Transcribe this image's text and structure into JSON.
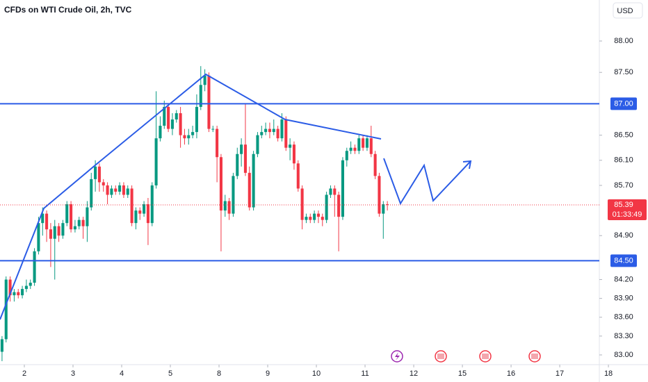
{
  "chart_data": {
    "type": "candlestick",
    "title": "CFDs on WTI Crude Oil, 2h, TVC",
    "currency": "USD",
    "up_color": "#089981",
    "down_color": "#f23645",
    "level_color": "#2b5ce6",
    "x": [
      0,
      1,
      2,
      3,
      4,
      5,
      6,
      7,
      8,
      9,
      10,
      11,
      12,
      13,
      14,
      15,
      16,
      17,
      18,
      19,
      20,
      21,
      22,
      23,
      24,
      25,
      26,
      27,
      28,
      29,
      30,
      31,
      32,
      33,
      34,
      35,
      36,
      37,
      38,
      39,
      40,
      41,
      42,
      43,
      44,
      45,
      46,
      47,
      48,
      49,
      50,
      51,
      52,
      53,
      54,
      55,
      56,
      57,
      58,
      59,
      60,
      61,
      62,
      63,
      64,
      65,
      66,
      67,
      68,
      69,
      70,
      71,
      72,
      73,
      74,
      75,
      76,
      77,
      78,
      79,
      80,
      81,
      82,
      83,
      84,
      85,
      86,
      87,
      88,
      89,
      90,
      91,
      92,
      93,
      94,
      95
    ],
    "open": [
      83.05,
      83.25,
      84.2,
      83.95,
      84.0,
      83.95,
      84.05,
      84.1,
      84.15,
      84.65,
      85.1,
      85.25,
      85.0,
      84.85,
      85.05,
      84.9,
      85.1,
      85.4,
      85.0,
      85.05,
      85.15,
      85.05,
      85.35,
      85.8,
      86.0,
      85.75,
      85.7,
      85.55,
      85.65,
      85.6,
      85.7,
      85.55,
      85.65,
      85.1,
      85.3,
      85.25,
      85.4,
      85.1,
      85.7,
      86.45,
      86.65,
      86.95,
      86.6,
      86.75,
      86.85,
      86.5,
      86.45,
      86.5,
      86.55,
      86.95,
      87.3,
      87.45,
      86.6,
      86.6,
      86.15,
      85.3,
      85.45,
      85.25,
      85.85,
      86.2,
      86.35,
      85.9,
      85.35,
      86.2,
      86.5,
      86.55,
      86.6,
      86.55,
      86.6,
      86.45,
      86.75,
      86.3,
      86.35,
      86.05,
      85.65,
      85.15,
      85.2,
      85.15,
      85.25,
      85.2,
      85.15,
      85.55,
      85.65,
      85.55,
      85.2,
      86.1,
      86.25,
      86.3,
      86.25,
      86.45,
      86.3,
      86.45,
      86.2,
      85.85,
      85.25,
      85.4
    ],
    "high": [
      83.3,
      84.25,
      84.25,
      84.05,
      84.05,
      84.1,
      84.2,
      84.2,
      84.7,
      85.2,
      85.35,
      85.3,
      85.1,
      85.15,
      85.1,
      85.15,
      85.45,
      85.45,
      85.15,
      85.2,
      85.2,
      85.45,
      85.9,
      86.1,
      86.05,
      85.8,
      85.75,
      85.7,
      85.7,
      85.75,
      85.75,
      85.7,
      85.7,
      85.35,
      85.35,
      85.45,
      85.5,
      85.75,
      87.2,
      86.8,
      87.05,
      87.0,
      86.85,
      86.9,
      86.95,
      86.6,
      86.6,
      86.65,
      87.15,
      87.6,
      87.55,
      87.5,
      86.65,
      86.65,
      86.2,
      85.55,
      85.5,
      85.9,
      86.3,
      86.45,
      87.0,
      86.0,
      86.25,
      86.55,
      86.65,
      86.7,
      86.7,
      86.75,
      86.65,
      86.85,
      86.8,
      86.45,
      86.4,
      86.1,
      85.7,
      85.25,
      85.25,
      85.3,
      85.3,
      85.25,
      85.6,
      85.7,
      85.7,
      85.6,
      86.15,
      86.3,
      86.4,
      86.35,
      86.5,
      86.5,
      86.5,
      86.65,
      86.25,
      85.9,
      85.45,
      85.45
    ],
    "low": [
      82.9,
      83.2,
      83.85,
      83.85,
      83.9,
      83.9,
      84.0,
      84.05,
      84.1,
      84.6,
      84.9,
      84.8,
      84.4,
      84.2,
      84.8,
      84.85,
      85.05,
      84.95,
      84.95,
      85.0,
      84.85,
      84.8,
      85.3,
      85.6,
      85.6,
      85.6,
      85.4,
      85.5,
      85.55,
      85.55,
      85.5,
      85.5,
      85.05,
      85.0,
      85.15,
      85.2,
      84.75,
      85.05,
      85.65,
      86.4,
      86.6,
      86.55,
      86.5,
      86.7,
      86.3,
      86.35,
      86.35,
      86.45,
      86.45,
      86.9,
      87.2,
      86.55,
      86.55,
      85.75,
      84.65,
      85.2,
      85.15,
      85.2,
      85.8,
      86.0,
      85.85,
      85.3,
      85.3,
      86.15,
      86.45,
      86.5,
      86.45,
      86.5,
      86.4,
      86.4,
      86.25,
      86.1,
      85.95,
      85.6,
      85.0,
      85.1,
      85.1,
      85.1,
      85.1,
      85.05,
      85.1,
      85.5,
      85.2,
      84.65,
      85.15,
      86.0,
      86.2,
      86.2,
      86.2,
      86.25,
      86.25,
      86.15,
      85.8,
      85.2,
      84.85,
      85.3
    ],
    "close": [
      83.25,
      84.2,
      83.95,
      84.0,
      83.95,
      84.05,
      84.1,
      84.15,
      84.65,
      85.1,
      85.25,
      85.0,
      84.85,
      85.05,
      84.9,
      85.1,
      85.4,
      85.0,
      85.05,
      85.15,
      85.05,
      85.35,
      85.8,
      86.0,
      85.75,
      85.7,
      85.55,
      85.65,
      85.6,
      85.7,
      85.55,
      85.65,
      85.1,
      85.3,
      85.25,
      85.4,
      85.1,
      85.7,
      86.45,
      86.65,
      86.95,
      86.6,
      86.75,
      86.85,
      86.5,
      86.45,
      86.5,
      86.55,
      86.95,
      87.3,
      87.45,
      86.6,
      86.6,
      86.15,
      85.3,
      85.45,
      85.25,
      85.85,
      86.2,
      86.35,
      85.9,
      85.35,
      86.2,
      86.5,
      86.55,
      86.6,
      86.55,
      86.6,
      86.45,
      86.75,
      86.3,
      86.35,
      86.05,
      85.65,
      85.15,
      85.2,
      85.15,
      85.25,
      85.2,
      85.15,
      85.55,
      85.65,
      85.55,
      85.2,
      86.1,
      86.25,
      86.3,
      86.25,
      86.45,
      86.3,
      86.45,
      86.2,
      85.85,
      85.25,
      85.4,
      85.39
    ],
    "xlim": [
      -0.5,
      159.26
    ],
    "xticks": [
      {
        "value": 5.5,
        "label": "2"
      },
      {
        "value": 17.5,
        "label": "3"
      },
      {
        "value": 29.5,
        "label": "4"
      },
      {
        "value": 41.5,
        "label": "5"
      },
      {
        "value": 53.5,
        "label": "8"
      },
      {
        "value": 65.5,
        "label": "9"
      },
      {
        "value": 77.5,
        "label": "10"
      },
      {
        "value": 89.5,
        "label": "11"
      },
      {
        "value": 101.5,
        "label": "12"
      },
      {
        "value": 113.5,
        "label": "15"
      },
      {
        "value": 125.5,
        "label": "16"
      },
      {
        "value": 137.5,
        "label": "17"
      },
      {
        "value": 149.5,
        "label": "18"
      }
    ],
    "ylim": [
      82.845,
      88.653
    ],
    "yticks": [
      {
        "value": 88,
        "label": "88.00"
      },
      {
        "value": 87.5,
        "label": "87.50"
      },
      {
        "value": 86.5,
        "label": "86.50"
      },
      {
        "value": 86.1,
        "label": "86.10"
      },
      {
        "value": 85.7,
        "label": "85.70"
      },
      {
        "value": 84.9,
        "label": "84.90"
      },
      {
        "value": 84.2,
        "label": "84.20"
      },
      {
        "value": 83.9,
        "label": "83.90"
      },
      {
        "value": 83.6,
        "label": "83.60"
      },
      {
        "value": 83.3,
        "label": "83.30"
      },
      {
        "value": 83,
        "label": "83.00"
      }
    ],
    "levels": [
      {
        "value": 87,
        "label": "87.00"
      },
      {
        "value": 84.5,
        "label": "84.50"
      }
    ],
    "last_price": 85.39,
    "countdown": "01:33:49"
  }
}
